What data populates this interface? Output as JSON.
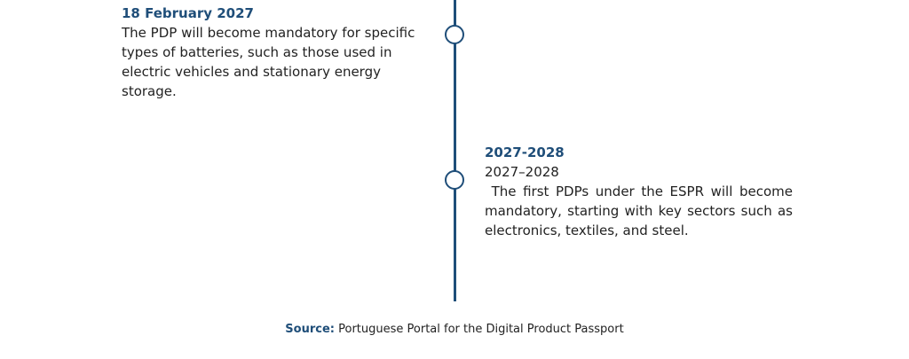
{
  "timeline": {
    "entries": [
      {
        "date": "18 February 2027",
        "text": "The PDP will become mandatory for specific types of batteries, such as those used in electric vehicles and stationary energy storage."
      },
      {
        "date": "2027-2028",
        "subdate": "2027–2028",
        "text": " The first PDPs under the ESPR will become mandatory, starting with key sectors such as electronics, textiles, and steel."
      }
    ]
  },
  "source": {
    "label": "Source:",
    "text": " Portuguese Portal for the Digital Product Passport"
  }
}
